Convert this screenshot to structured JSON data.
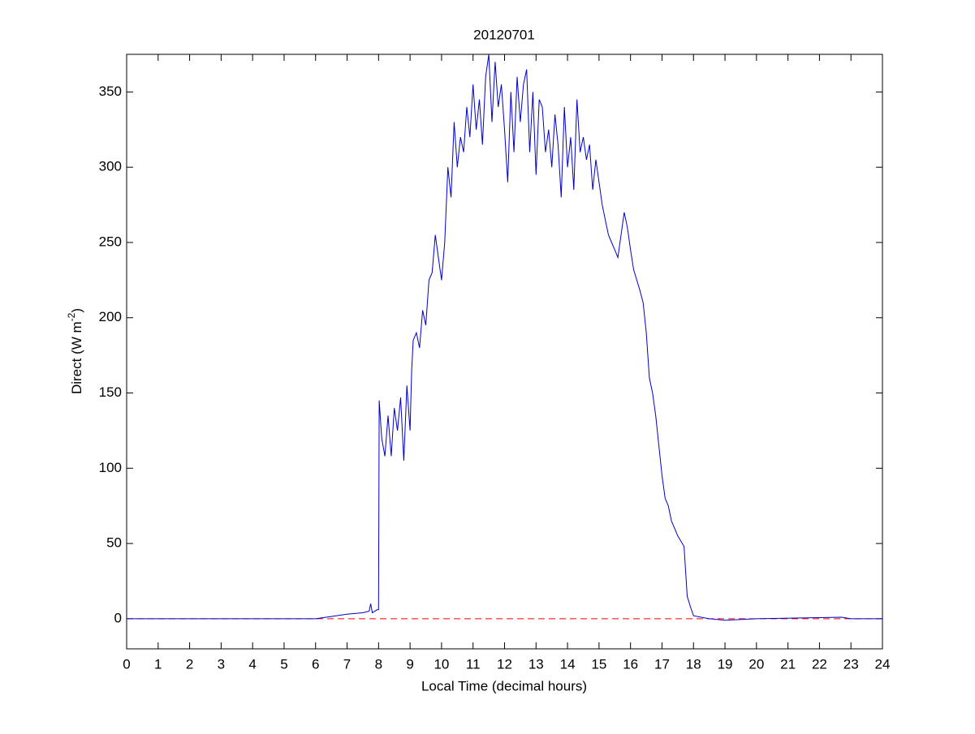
{
  "chart_data": {
    "type": "line",
    "title": "20120701",
    "xlabel": "Local Time (decimal hours)",
    "ylabel": {
      "text": "Direct (W m",
      "sup": "-2",
      "end": ")"
    },
    "xlim": [
      0,
      24
    ],
    "xticks": [
      0,
      1,
      2,
      3,
      4,
      5,
      6,
      7,
      8,
      9,
      10,
      11,
      12,
      13,
      14,
      15,
      16,
      17,
      18,
      19,
      20,
      21,
      22,
      23,
      24
    ],
    "ylim": [
      -20,
      375
    ],
    "yticks": [
      0,
      50,
      100,
      150,
      200,
      250,
      300,
      350
    ],
    "reference_line": {
      "value": 0,
      "color": "#ff0000"
    },
    "series": [
      {
        "color": "#0000cc",
        "x": [
          0,
          6,
          6.5,
          7,
          7.5,
          7.7,
          7.75,
          7.8,
          7.95,
          8.0,
          8.02,
          8.1,
          8.2,
          8.3,
          8.4,
          8.5,
          8.6,
          8.7,
          8.8,
          8.9,
          9.0,
          9.05,
          9.1,
          9.2,
          9.3,
          9.4,
          9.5,
          9.6,
          9.7,
          9.8,
          9.9,
          10.0,
          10.1,
          10.2,
          10.3,
          10.4,
          10.5,
          10.6,
          10.7,
          10.8,
          10.9,
          11.0,
          11.1,
          11.2,
          11.3,
          11.4,
          11.5,
          11.6,
          11.7,
          11.8,
          11.9,
          12.0,
          12.1,
          12.2,
          12.3,
          12.4,
          12.5,
          12.6,
          12.7,
          12.8,
          12.9,
          13.0,
          13.1,
          13.2,
          13.3,
          13.4,
          13.5,
          13.6,
          13.7,
          13.8,
          13.9,
          14.0,
          14.1,
          14.2,
          14.3,
          14.4,
          14.5,
          14.6,
          14.7,
          14.8,
          14.9,
          15.0,
          15.1,
          15.2,
          15.3,
          15.4,
          15.5,
          15.6,
          15.7,
          15.8,
          15.9,
          16.0,
          16.1,
          16.2,
          16.3,
          16.4,
          16.5,
          16.6,
          16.7,
          16.8,
          16.9,
          17.0,
          17.1,
          17.2,
          17.3,
          17.5,
          17.7,
          17.8,
          17.9,
          18.0,
          18.5,
          19,
          20,
          22.7,
          23,
          24
        ],
        "values": [
          0,
          0,
          1.5,
          3,
          4,
          5,
          10,
          4,
          6,
          6,
          145,
          120,
          108,
          135,
          108,
          140,
          125,
          147,
          105,
          155,
          125,
          165,
          185,
          190,
          180,
          205,
          195,
          225,
          230,
          255,
          240,
          225,
          250,
          300,
          280,
          330,
          300,
          320,
          310,
          340,
          320,
          355,
          325,
          345,
          315,
          360,
          375,
          330,
          370,
          340,
          355,
          325,
          290,
          350,
          310,
          360,
          330,
          355,
          365,
          310,
          350,
          295,
          345,
          340,
          310,
          325,
          300,
          335,
          315,
          280,
          340,
          300,
          320,
          285,
          345,
          310,
          320,
          305,
          315,
          285,
          305,
          290,
          275,
          265,
          255,
          250,
          245,
          240,
          255,
          270,
          260,
          245,
          232,
          225,
          218,
          210,
          190,
          160,
          150,
          135,
          115,
          95,
          80,
          75,
          65,
          55,
          48,
          15,
          8,
          2,
          0,
          -1,
          0,
          1,
          0,
          0
        ]
      }
    ]
  }
}
